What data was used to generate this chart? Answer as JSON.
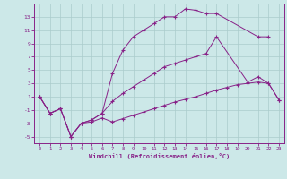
{
  "background_color": "#cce8e8",
  "grid_color": "#aacccc",
  "line_color": "#882288",
  "xlabel": "Windchill (Refroidissement éolien,°C)",
  "ylim": [
    -6,
    15
  ],
  "xlim": [
    -0.5,
    23.5
  ],
  "yticks": [
    -5,
    -3,
    -1,
    1,
    3,
    5,
    7,
    9,
    11,
    13
  ],
  "xticks": [
    0,
    1,
    2,
    3,
    4,
    5,
    6,
    7,
    8,
    9,
    10,
    11,
    12,
    13,
    14,
    15,
    16,
    17,
    18,
    19,
    20,
    21,
    22,
    23
  ],
  "line1_x": [
    0,
    1,
    2,
    3,
    4,
    5,
    6,
    7,
    8,
    9,
    10,
    11,
    12,
    13,
    14,
    15,
    16,
    17,
    21,
    22
  ],
  "line1_y": [
    1,
    -1.5,
    -0.8,
    -5,
    -3.0,
    -2.5,
    -1.5,
    4.5,
    8.0,
    10.0,
    11.0,
    12.0,
    13.0,
    13.0,
    14.2,
    14.0,
    13.5,
    13.5,
    10.0,
    10.0
  ],
  "line2_x": [
    0,
    1,
    2,
    3,
    4,
    5,
    6,
    7,
    8,
    9,
    10,
    11,
    12,
    13,
    14,
    15,
    16,
    17,
    20,
    21,
    22,
    23
  ],
  "line2_y": [
    1,
    -1.5,
    -0.8,
    -5,
    -3.0,
    -2.5,
    -1.5,
    0.3,
    1.5,
    2.5,
    3.5,
    4.5,
    5.5,
    6.0,
    6.5,
    7.0,
    7.5,
    10.0,
    3.2,
    4.0,
    3.0,
    0.5
  ],
  "line3_x": [
    0,
    1,
    2,
    3,
    4,
    5,
    6,
    7,
    8,
    9,
    10,
    11,
    12,
    13,
    14,
    15,
    16,
    17,
    18,
    19,
    20,
    21,
    22,
    23
  ],
  "line3_y": [
    1,
    -1.5,
    -0.8,
    -5,
    -3.0,
    -2.8,
    -2.2,
    -2.8,
    -2.3,
    -1.8,
    -1.3,
    -0.8,
    -0.3,
    0.2,
    0.6,
    1.0,
    1.5,
    2.0,
    2.4,
    2.8,
    3.0,
    3.2,
    3.0,
    0.5
  ]
}
